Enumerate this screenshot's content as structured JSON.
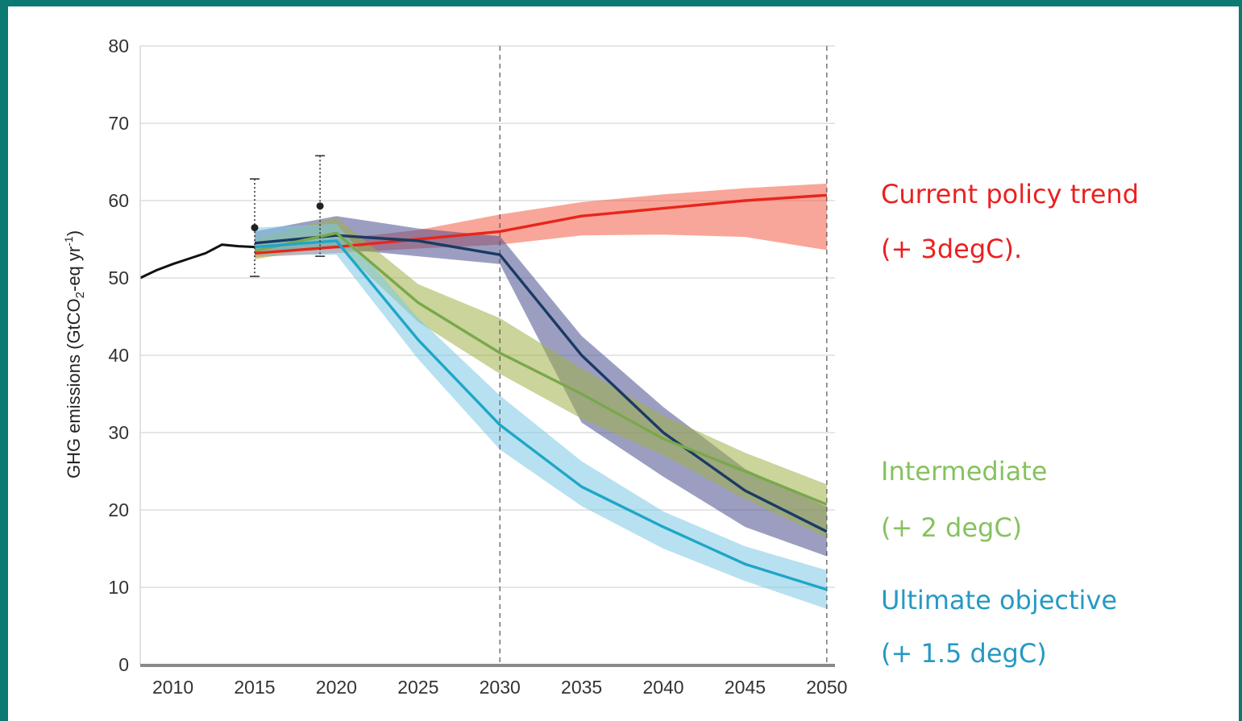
{
  "chart_data": {
    "type": "line",
    "title": "",
    "xlabel": "",
    "ylabel": "GHG emissions (GtCO",
    "ylabel_sub": "2",
    "ylabel_end": "-eq yr",
    "ylabel_sup": "-1",
    "ylabel_close": ")",
    "xlim": [
      2008,
      2050.5
    ],
    "ylim": [
      0,
      80
    ],
    "x_ticks": [
      2010,
      2015,
      2020,
      2025,
      2030,
      2035,
      2040,
      2045,
      2050
    ],
    "y_ticks": [
      0,
      10,
      20,
      30,
      40,
      50,
      60,
      70,
      80
    ],
    "grid": "horizontal",
    "reference_lines": [
      2030,
      2050
    ],
    "historical": {
      "color": "#111111",
      "x": [
        2008,
        2009,
        2010,
        2011,
        2012,
        2013,
        2014,
        2015
      ],
      "y": [
        50,
        51,
        51.8,
        52.5,
        53.2,
        54.3,
        54.1,
        54
      ]
    },
    "observations": [
      {
        "x": 2015,
        "y": 56.5,
        "low": 50.2,
        "high": 62.8
      },
      {
        "x": 2019,
        "y": 59.3,
        "low": 52.8,
        "high": 65.8
      }
    ],
    "series": [
      {
        "color": "#e8251c",
        "band_color": "#f25c45",
        "x": [
          2015,
          2020,
          2025,
          2030,
          2035,
          2040,
          2045,
          2050
        ],
        "y": [
          53.2,
          54,
          55,
          56,
          58,
          59,
          60,
          60.7
        ],
        "low": [
          52.7,
          53.2,
          53.8,
          54.3,
          55.5,
          55.6,
          55.3,
          53.6
        ],
        "high": [
          54.2,
          55,
          56.2,
          58.2,
          59.8,
          60.8,
          61.6,
          62.2
        ]
      },
      {
        "color": "#1a3b63",
        "band_color": "#4a4e8e",
        "x": [
          2015,
          2020,
          2025,
          2030,
          2035,
          2040,
          2045,
          2050
        ],
        "y": [
          54.5,
          55.5,
          54.8,
          53,
          40,
          30,
          22.5,
          17.2
        ],
        "low": [
          53.5,
          53.8,
          52.8,
          51.8,
          31.3,
          24.3,
          17.8,
          14
        ],
        "high": [
          56,
          58,
          56.4,
          55.4,
          42.5,
          33.3,
          25.3,
          20.4
        ]
      },
      {
        "color": "#79a84c",
        "band_color": "#9eb049",
        "x": [
          2015,
          2020,
          2025,
          2030,
          2035,
          2040,
          2045,
          2050
        ],
        "y": [
          53.5,
          55.8,
          46.8,
          40.3,
          35,
          29.2,
          25,
          20.7
        ],
        "low": [
          52.4,
          54.3,
          44.3,
          37.6,
          31.8,
          27.1,
          21.4,
          16.4
        ],
        "high": [
          55,
          57.8,
          49.2,
          44.8,
          38.3,
          32.2,
          27.4,
          23.3
        ]
      },
      {
        "color": "#1fa6c7",
        "band_color": "#7cc9e3",
        "x": [
          2015,
          2020,
          2025,
          2030,
          2035,
          2040,
          2045,
          2050
        ],
        "y": [
          54,
          54.8,
          42,
          31,
          23,
          17.8,
          13,
          9.7
        ],
        "low": [
          53,
          53,
          39.5,
          27.8,
          20.5,
          15,
          10.8,
          7.2
        ],
        "high": [
          56.5,
          57,
          44.8,
          34.8,
          26.3,
          19.8,
          15.3,
          12.2
        ]
      }
    ]
  },
  "legend": [
    {
      "line1": "Current policy trend",
      "line2": " (+ 3degC).",
      "color": "#ea2020"
    },
    {
      "line1": "Intermediate",
      "line2": "(+ 2 degC)",
      "color": "#86c25e"
    },
    {
      "line1": "Ultimate objective",
      "line2": "(+ 1.5 degC)",
      "color": "#2599c3"
    }
  ]
}
